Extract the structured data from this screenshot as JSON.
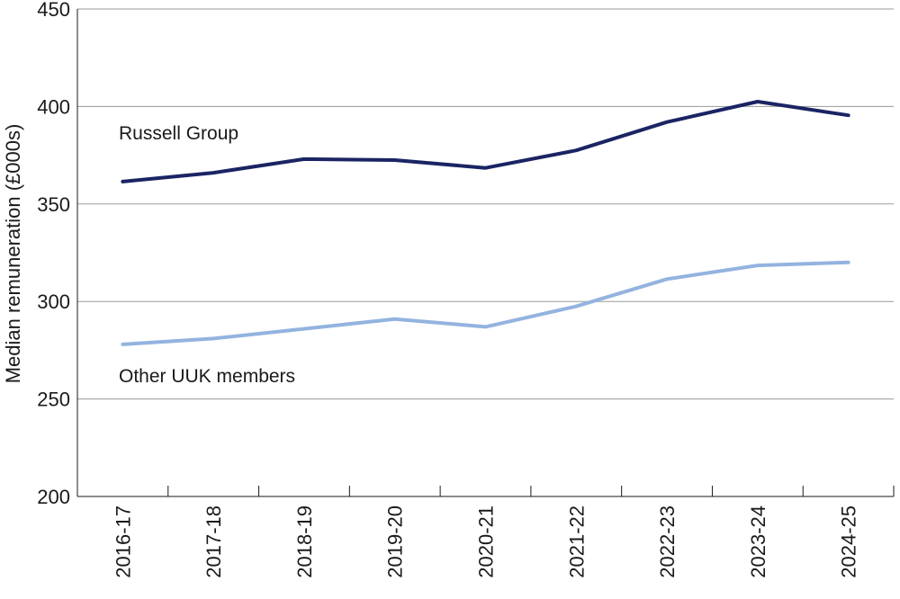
{
  "chart_data": {
    "type": "line",
    "title": "",
    "xlabel": "",
    "ylabel": "Median remuneration (£000s)",
    "categories": [
      "2016-17",
      "2017-18",
      "2018-19",
      "2019-20",
      "2020-21",
      "2021-22",
      "2022-23",
      "2023-24",
      "2024-25"
    ],
    "yticks": [
      "200",
      "250",
      "300",
      "350",
      "400",
      "450"
    ],
    "ylim": [
      200,
      450
    ],
    "grid": "horizontal",
    "legend": "inline labels",
    "series": [
      {
        "name": "Russell Group",
        "color": "#1b2463",
        "values": [
          361.5,
          366,
          373,
          372.5,
          368.5,
          377.5,
          392,
          402.5,
          395.5
        ]
      },
      {
        "name": "Other UUK members",
        "color": "#93b3e0",
        "values": [
          278,
          281,
          286,
          291,
          287,
          297.5,
          311.5,
          318.5,
          320
        ]
      }
    ]
  }
}
